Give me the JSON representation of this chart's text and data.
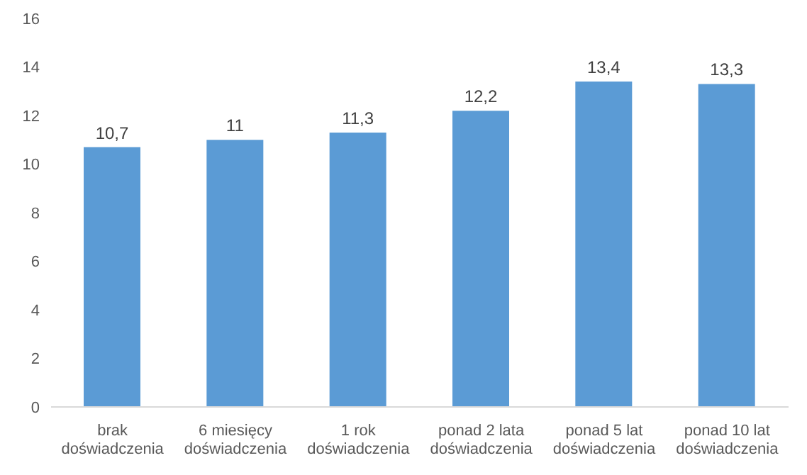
{
  "chart_data": {
    "type": "bar",
    "categories": [
      "brak doświadczenia",
      "6 miesięcy doświadczenia",
      "1 rok doświadczenia",
      "ponad 2 lata doświadczenia",
      "ponad 5 lat doświadczenia",
      "ponad 10 lat doświadczenia"
    ],
    "values": [
      10.7,
      11,
      11.3,
      12.2,
      13.4,
      13.3
    ],
    "value_labels": [
      "10,7",
      "11",
      "11,3",
      "12,2",
      "13,4",
      "13,3"
    ],
    "color": "#5b9bd5",
    "ylim": [
      0,
      16
    ],
    "yticks": [
      0,
      2,
      4,
      6,
      8,
      10,
      12,
      14,
      16
    ],
    "grid": false
  }
}
